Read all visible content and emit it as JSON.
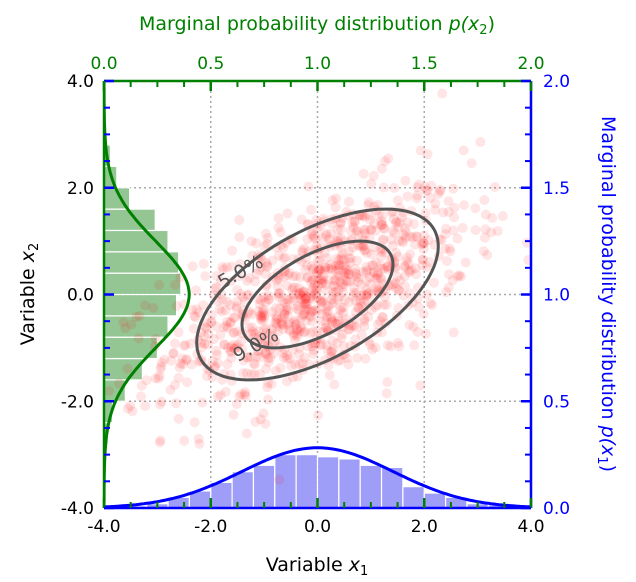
{
  "chart_data": {
    "type": "scatter",
    "title": "",
    "x1_axis": {
      "label_main": "Variable ",
      "label_var": "x",
      "label_sub": "1",
      "range": [
        -4.0,
        4.0
      ],
      "ticks": [
        -4.0,
        -2.0,
        0.0,
        2.0,
        4.0
      ],
      "tick_labels": [
        "-4.0",
        "-2.0",
        "0.0",
        "2.0",
        "4.0"
      ]
    },
    "x2_axis": {
      "label_main": "Variable ",
      "label_var": "x",
      "label_sub": "2",
      "range": [
        -4.0,
        4.0
      ],
      "ticks": [
        -4.0,
        -2.0,
        0.0,
        2.0,
        4.0
      ],
      "tick_labels": [
        "-4.0",
        "-2.0",
        "0.0",
        "2.0",
        "4.0"
      ]
    },
    "top_axis": {
      "label_main": "Marginal probability distribution ",
      "label_var": "p(x",
      "label_sub": "2",
      "label_end": ")",
      "range": [
        0.0,
        2.0
      ],
      "ticks": [
        0.0,
        0.5,
        1.0,
        1.5,
        2.0
      ],
      "tick_labels": [
        "0.0",
        "0.5",
        "1.0",
        "1.5",
        "2.0"
      ],
      "color": "#008000"
    },
    "right_axis": {
      "label_main": "Marginal probability distribution ",
      "label_var": "p(x",
      "label_sub": "1",
      "label_end": ")",
      "range": [
        0.0,
        2.0
      ],
      "ticks": [
        0.0,
        0.5,
        1.0,
        1.5,
        2.0
      ],
      "tick_labels": [
        "0.0",
        "0.5",
        "1.0",
        "1.5",
        "2.0"
      ],
      "color": "#0000ff"
    },
    "grid": true,
    "scatter": {
      "color": "#ff0000",
      "opacity": 0.1,
      "n_points": 1000,
      "mean": [
        0.0,
        0.0
      ],
      "cov": [
        [
          2.0,
          0.8
        ],
        [
          0.8,
          1.0
        ]
      ]
    },
    "contours": {
      "color": "#555555",
      "levels": [
        {
          "mahalanobis_radius": 1.0,
          "label": "9.0%"
        },
        {
          "mahalanobis_radius": 1.6,
          "label": "5.0%"
        }
      ]
    },
    "marginal_x1": {
      "color": "#0000ff",
      "hist_color": "#6a6af5",
      "mean": 0.0,
      "std": 1.414,
      "bins": [
        -4.0,
        -3.6,
        -3.2,
        -2.8,
        -2.4,
        -2.0,
        -1.6,
        -1.2,
        -0.8,
        -0.4,
        0.0,
        0.4,
        0.8,
        1.2,
        1.6,
        2.0,
        2.4,
        2.8,
        3.2,
        3.6,
        4.0
      ],
      "density": [
        0.005,
        0.01,
        0.02,
        0.05,
        0.08,
        0.12,
        0.17,
        0.2,
        0.25,
        0.25,
        0.24,
        0.23,
        0.2,
        0.19,
        0.1,
        0.07,
        0.05,
        0.02,
        0.015,
        0.01
      ]
    },
    "marginal_x2": {
      "color": "#008000",
      "hist_color": "#5aa85a",
      "mean": 0.0,
      "std": 1.0,
      "bins": [
        -4.0,
        -3.6,
        -3.2,
        -2.8,
        -2.4,
        -2.0,
        -1.6,
        -1.2,
        -0.8,
        -0.4,
        0.0,
        0.4,
        0.8,
        1.2,
        1.6,
        2.0,
        2.4,
        2.8,
        3.2,
        3.6,
        4.0
      ],
      "density": [
        0.0,
        0.0,
        0.01,
        0.02,
        0.04,
        0.1,
        0.18,
        0.25,
        0.3,
        0.34,
        0.36,
        0.35,
        0.3,
        0.24,
        0.12,
        0.06,
        0.03,
        0.01,
        0.0,
        0.0
      ]
    }
  }
}
